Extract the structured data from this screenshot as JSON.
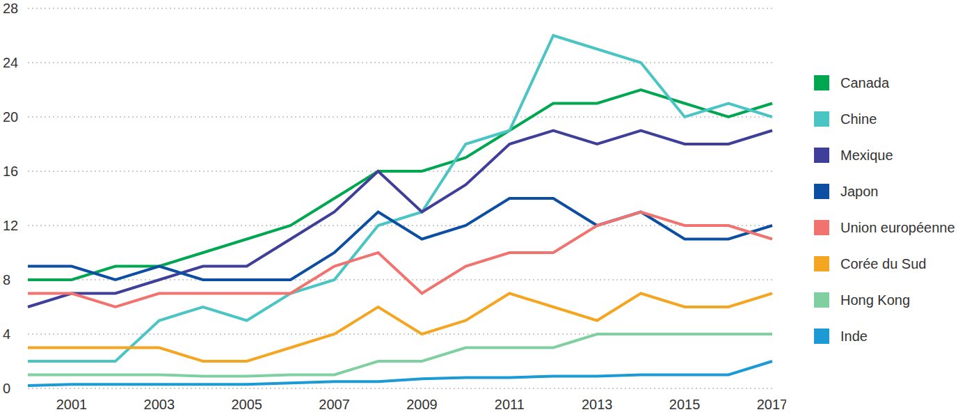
{
  "chart_data": {
    "type": "line",
    "categories": [
      null,
      "2001",
      null,
      "2003",
      null,
      "2005",
      null,
      "2007",
      null,
      "2009",
      null,
      "2011",
      null,
      "2013",
      null,
      "2015",
      null,
      "2017"
    ],
    "series": [
      {
        "name": "Canada",
        "color": "#00a650",
        "values": [
          8,
          8,
          9,
          9,
          10,
          11,
          12,
          14,
          16,
          16,
          17,
          19,
          21,
          21,
          22,
          21,
          20,
          21
        ]
      },
      {
        "name": "Chine",
        "color": "#4bc4c4",
        "values": [
          2,
          2,
          2,
          5,
          6,
          5,
          7,
          8,
          12,
          13,
          18,
          19,
          26,
          25,
          24,
          20,
          21,
          20
        ]
      },
      {
        "name": "Mexique",
        "color": "#3f3f9a",
        "values": [
          6,
          7,
          7,
          8,
          9,
          9,
          11,
          13,
          16,
          13,
          15,
          18,
          19,
          18,
          19,
          18,
          18,
          19
        ]
      },
      {
        "name": "Japon",
        "color": "#0b4ea2",
        "values": [
          9,
          9,
          8,
          9,
          8,
          8,
          8,
          10,
          13,
          11,
          12,
          14,
          14,
          12,
          13,
          11,
          11,
          12
        ]
      },
      {
        "name": "Union européenne",
        "color": "#f0736f",
        "values": [
          7,
          7,
          6,
          7,
          7,
          7,
          7,
          9,
          10,
          7,
          9,
          10,
          10,
          12,
          13,
          12,
          12,
          11
        ]
      },
      {
        "name": "Corée du Sud",
        "color": "#f4a623",
        "values": [
          3,
          3,
          3,
          3,
          2,
          2,
          3,
          4,
          6,
          4,
          5,
          7,
          6,
          5,
          7,
          6,
          6,
          7
        ]
      },
      {
        "name": "Hong Kong",
        "color": "#7fcfa0",
        "values": [
          1,
          1,
          1,
          1,
          0.9,
          0.9,
          1,
          1,
          2,
          2,
          3,
          3,
          3,
          4,
          4,
          4,
          4,
          4
        ]
      },
      {
        "name": "Inde",
        "color": "#1b9ad6",
        "values": [
          0.2,
          0.3,
          0.3,
          0.3,
          0.3,
          0.3,
          0.4,
          0.5,
          0.5,
          0.7,
          0.8,
          0.8,
          0.9,
          0.9,
          1,
          1,
          1,
          2
        ]
      }
    ],
    "ylim": [
      0,
      28
    ],
    "yticks": [
      0,
      4,
      8,
      12,
      16,
      20,
      24,
      28
    ],
    "grid": true,
    "legend": "right"
  }
}
